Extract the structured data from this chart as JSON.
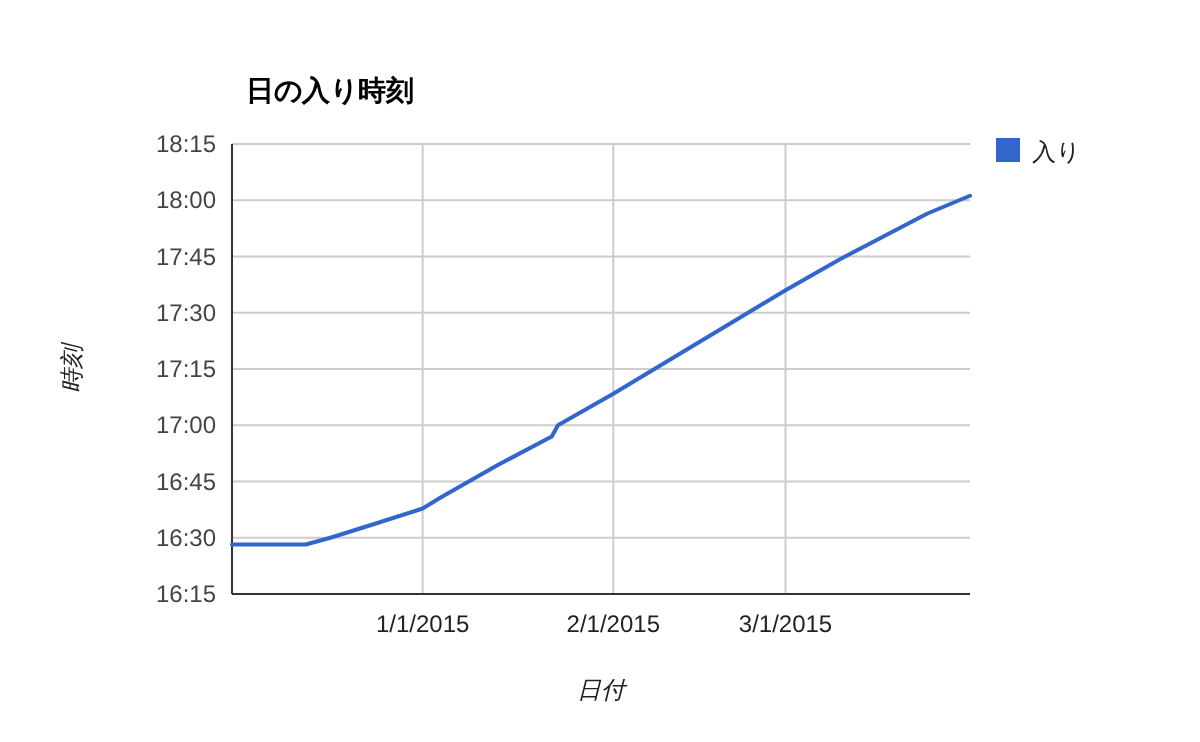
{
  "chart_data": {
    "type": "line",
    "title": "日の入り時刻",
    "xlabel": "日付",
    "ylabel": "時刻",
    "x": [
      "2014-12-01",
      "2014-12-13",
      "2014-12-17",
      "2014-12-24",
      "2015-01-01",
      "2015-01-04",
      "2015-01-13",
      "2015-01-22",
      "2015-01-23",
      "2015-02-01",
      "2015-03-01",
      "2015-03-10",
      "2015-03-17",
      "2015-03-24",
      "2015-03-31"
    ],
    "series": [
      {
        "name": "入り",
        "color": "#3366cc",
        "values": [
          16.47,
          16.47,
          16.5,
          16.56,
          16.63,
          16.68,
          16.82,
          16.95,
          17.0,
          17.14,
          17.6,
          17.74,
          17.84,
          17.94,
          18.02
        ]
      }
    ],
    "xlim": [
      "2014-12-01",
      "2015-03-31"
    ],
    "xticks": [
      {
        "value": "2015-01-01",
        "label": "1/1/2015"
      },
      {
        "value": "2015-02-01",
        "label": "2/1/2015"
      },
      {
        "value": "2015-03-01",
        "label": "3/1/2015"
      }
    ],
    "ylim": [
      16.25,
      18.25
    ],
    "yticks": [
      {
        "value": 16.25,
        "label": "16:15"
      },
      {
        "value": 16.5,
        "label": "16:30"
      },
      {
        "value": 16.75,
        "label": "16:45"
      },
      {
        "value": 17,
        "label": "17:00"
      },
      {
        "value": 17.25,
        "label": "17:15"
      },
      {
        "value": 17.5,
        "label": "17:30"
      },
      {
        "value": 17.75,
        "label": "17:45"
      },
      {
        "value": 18,
        "label": "18:00"
      },
      {
        "value": 18.25,
        "label": "18:15"
      }
    ],
    "grid": true,
    "legend": "top right",
    "marker": "none",
    "line_style": "solid"
  }
}
